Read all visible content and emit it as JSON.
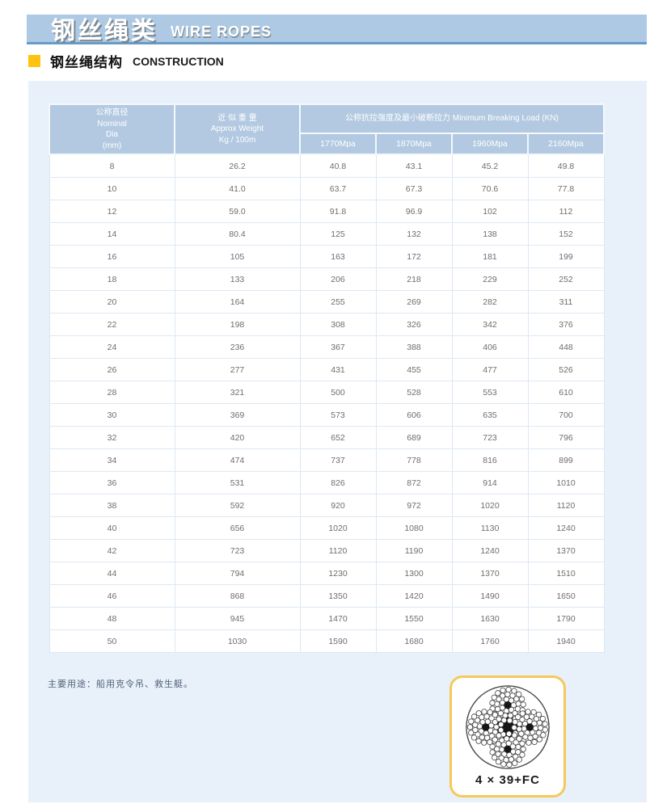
{
  "header": {
    "title_cn": "钢丝绳类",
    "title_en": "WIRE ROPES"
  },
  "section": {
    "title_cn": "钢丝绳结构",
    "title_en": "CONSTRUCTION"
  },
  "table": {
    "headers": {
      "dia_lines": [
        "公称直径",
        "Nominal",
        "Dia",
        "(mm)"
      ],
      "weight_lines": [
        "近 似 重 量",
        "Approx Weight",
        "Kg / 100m"
      ],
      "breaking_load": "公称抗拉强度及最小破断拉力 Minimum Breaking Load (KN)",
      "grades": [
        "1770Mpa",
        "1870Mpa",
        "1960Mpa",
        "2160Mpa"
      ]
    },
    "rows": [
      [
        "8",
        "26.2",
        "40.8",
        "43.1",
        "45.2",
        "49.8"
      ],
      [
        "10",
        "41.0",
        "63.7",
        "67.3",
        "70.6",
        "77.8"
      ],
      [
        "12",
        "59.0",
        "91.8",
        "96.9",
        "102",
        "112"
      ],
      [
        "14",
        "80.4",
        "125",
        "132",
        "138",
        "152"
      ],
      [
        "16",
        "105",
        "163",
        "172",
        "181",
        "199"
      ],
      [
        "18",
        "133",
        "206",
        "218",
        "229",
        "252"
      ],
      [
        "20",
        "164",
        "255",
        "269",
        "282",
        "311"
      ],
      [
        "22",
        "198",
        "308",
        "326",
        "342",
        "376"
      ],
      [
        "24",
        "236",
        "367",
        "388",
        "406",
        "448"
      ],
      [
        "26",
        "277",
        "431",
        "455",
        "477",
        "526"
      ],
      [
        "28",
        "321",
        "500",
        "528",
        "553",
        "610"
      ],
      [
        "30",
        "369",
        "573",
        "606",
        "635",
        "700"
      ],
      [
        "32",
        "420",
        "652",
        "689",
        "723",
        "796"
      ],
      [
        "34",
        "474",
        "737",
        "778",
        "816",
        "899"
      ],
      [
        "36",
        "531",
        "826",
        "872",
        "914",
        "1010"
      ],
      [
        "38",
        "592",
        "920",
        "972",
        "1020",
        "1120"
      ],
      [
        "40",
        "656",
        "1020",
        "1080",
        "1130",
        "1240"
      ],
      [
        "42",
        "723",
        "1120",
        "1190",
        "1240",
        "1370"
      ],
      [
        "44",
        "794",
        "1230",
        "1300",
        "1370",
        "1510"
      ],
      [
        "46",
        "868",
        "1350",
        "1420",
        "1490",
        "1650"
      ],
      [
        "48",
        "945",
        "1470",
        "1550",
        "1630",
        "1790"
      ],
      [
        "50",
        "1030",
        "1590",
        "1680",
        "1760",
        "1940"
      ]
    ]
  },
  "footnote": "主要用途：船用克令吊、救生艇。",
  "rope": {
    "label": "4 × 39+FC"
  },
  "colors": {
    "banner_blue": "#adc9e3",
    "banner_border_blue": "#689bc6",
    "header_cell_blue": "#b2c9e1",
    "panel_blue": "#e8f0f9",
    "accent_yellow": "#ffc20e",
    "rope_box_border": "#f5c95a"
  }
}
